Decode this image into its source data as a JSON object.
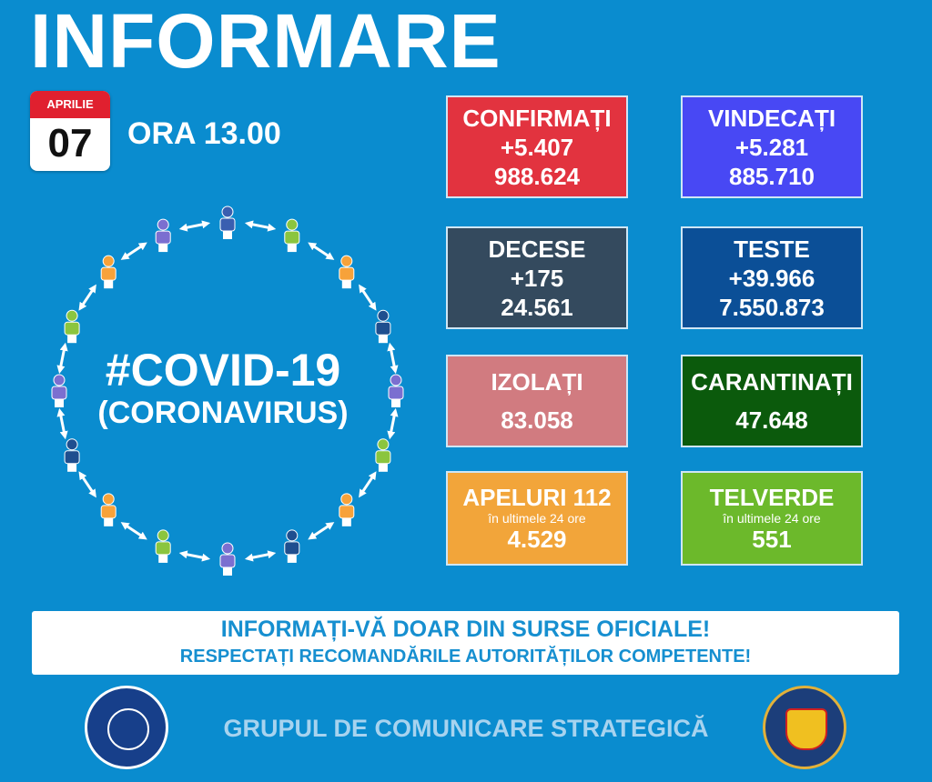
{
  "header": {
    "title": "INFORMARE",
    "calendar_month": "APRILIE",
    "calendar_day": "07",
    "time": "ORA 13.00"
  },
  "center": {
    "hashtag": "#COVID-19",
    "subtitle": "(CORONAVIRUS)"
  },
  "stats": [
    {
      "label": "CONFIRMAȚI",
      "delta": "+5.407",
      "total": "988.624",
      "color": "#e2333f"
    },
    {
      "label": "VINDECAȚI",
      "delta": "+5.281",
      "total": "885.710",
      "color": "#4848f4"
    },
    {
      "label": "DECESE",
      "delta": "+175",
      "total": "24.561",
      "color": "#344a5e"
    },
    {
      "label": "TESTE",
      "delta": "+39.966",
      "total": "7.550.873",
      "color": "#0b4f97"
    },
    {
      "label": "IZOLAȚI",
      "total": "83.058",
      "color": "#d17b80"
    },
    {
      "label": "CARANTINAȚI",
      "total": "47.648",
      "color": "#0b5a0c"
    },
    {
      "label": "APELURI 112",
      "note": "în ultimele 24 ore",
      "total": "4.529",
      "color": "#f2a53a"
    },
    {
      "label": "TELVERDE",
      "note": "în ultimele 24 ore",
      "total": "551",
      "color": "#6cb92b"
    }
  ],
  "banner": {
    "line1": "INFORMAȚI-VĂ DOAR DIN SURSE OFICIALE!",
    "line2": "RESPECTAȚI RECOMANDĂRILE AUTORITĂȚILOR COMPETENTE!"
  },
  "footer": {
    "text": "GRUPUL DE COMUNICARE STRATEGICĂ",
    "logo_left": "GUVERNUL ROMÂNIEI",
    "logo_right": "DEPARTAMENTUL PENTRU SITUAȚII DE URGENȚĂ M.A.I."
  },
  "people_colors": [
    "#3a5fb0",
    "#8bc53f",
    "#f7a23a",
    "#1f4f8f",
    "#7b6fd0",
    "#8bc53f",
    "#f7a23a",
    "#1f4f8f",
    "#7b6fd0",
    "#8bc53f",
    "#f7a23a",
    "#1f4f8f",
    "#7b6fd0",
    "#8bc53f",
    "#f7a23a",
    "#7b6fd0"
  ]
}
